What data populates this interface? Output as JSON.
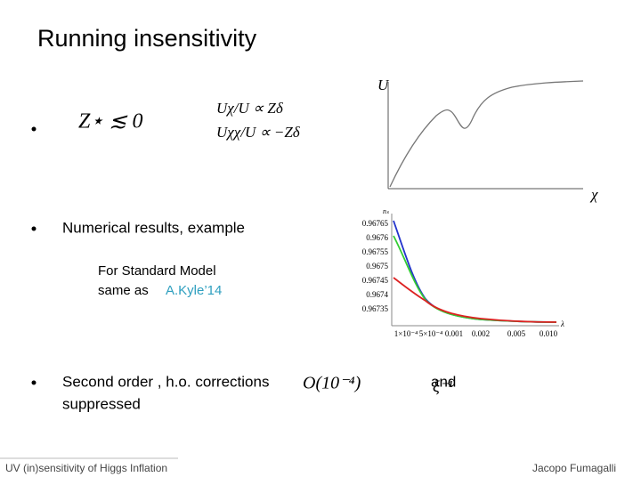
{
  "header": {
    "title": "Running insensitivity"
  },
  "bullet1": {
    "formula": "Z⋆ ≲ 0",
    "relation1": "Uχ/U ∝ Zδ",
    "relation2": "Uχχ/U ∝ −Zδ"
  },
  "plot1": {
    "y_label": "U",
    "x_label": "χ"
  },
  "bullet2": {
    "text": "Numerical results, example"
  },
  "note": {
    "line1": "For Standard Model",
    "line2": "same as",
    "reference": "A.Kyle’14"
  },
  "plot2": {
    "y_label": "nₛ",
    "y_ticks": [
      "0.96765",
      "0.9676",
      "0.96755",
      "0.9675",
      "0.96745",
      "0.9674",
      "0.96735"
    ],
    "x_ticks": [
      "1×10⁻⁴",
      "5×10⁻⁴",
      "0.001",
      "0.002",
      "0.005",
      "0.010"
    ],
    "x_label": "λ"
  },
  "bullet3": {
    "text": "Second order , h.o. corrections",
    "formula": "O(10⁻⁴)",
    "conjunction": "and",
    "formula2": "ξ⁻¹",
    "tail": "suppressed"
  },
  "footer": {
    "left": "UV (in)sensitivity of Higgs Inflation",
    "right": "Jacopo Fumagalli"
  }
}
